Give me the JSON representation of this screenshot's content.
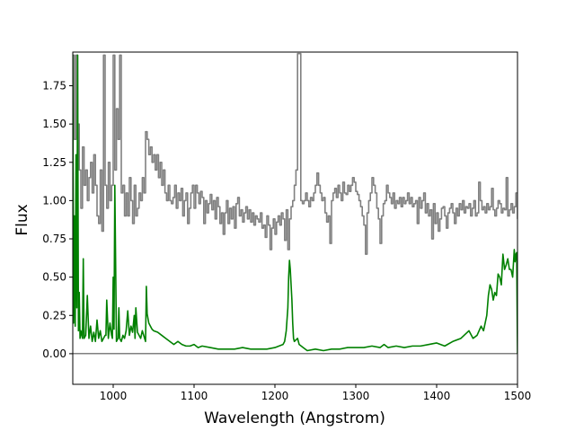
{
  "chart_data": {
    "type": "line",
    "xlabel": "Wavelength (Angstrom)",
    "ylabel": "Flux",
    "xlim": [
      950,
      1500
    ],
    "ylim": [
      -0.2,
      1.97
    ],
    "xticks": [
      1000,
      1100,
      1200,
      1300,
      1400,
      1500
    ],
    "yticks": [
      0.0,
      0.25,
      0.5,
      0.75,
      1.0,
      1.25,
      1.5,
      1.75
    ],
    "xtick_labels": [
      "1000",
      "1100",
      "1200",
      "1300",
      "1400",
      "1500"
    ],
    "ytick_labels": [
      "0.00",
      "0.25",
      "0.50",
      "0.75",
      "1.00",
      "1.25",
      "1.50",
      "1.75"
    ],
    "zero_line": 0.0,
    "grid": false,
    "series": [
      {
        "color": "#808080",
        "step": true,
        "x": [
          950,
          952,
          954,
          956,
          958,
          960,
          962,
          964,
          966,
          968,
          970,
          972,
          974,
          976,
          978,
          980,
          982,
          984,
          986,
          988,
          990,
          992,
          994,
          996,
          998,
          1000,
          1002,
          1004,
          1006,
          1008,
          1010,
          1012,
          1014,
          1016,
          1018,
          1020,
          1022,
          1024,
          1026,
          1028,
          1030,
          1032,
          1034,
          1036,
          1038,
          1040,
          1042,
          1044,
          1046,
          1048,
          1050,
          1052,
          1054,
          1056,
          1058,
          1060,
          1062,
          1064,
          1066,
          1068,
          1070,
          1072,
          1074,
          1076,
          1078,
          1080,
          1082,
          1084,
          1086,
          1088,
          1090,
          1092,
          1094,
          1096,
          1098,
          1100,
          1102,
          1104,
          1106,
          1108,
          1110,
          1112,
          1114,
          1116,
          1118,
          1120,
          1122,
          1124,
          1126,
          1128,
          1130,
          1132,
          1134,
          1136,
          1138,
          1140,
          1142,
          1144,
          1146,
          1148,
          1150,
          1152,
          1154,
          1156,
          1158,
          1160,
          1162,
          1164,
          1166,
          1168,
          1170,
          1172,
          1174,
          1176,
          1178,
          1180,
          1182,
          1184,
          1186,
          1188,
          1190,
          1192,
          1194,
          1196,
          1198,
          1200,
          1202,
          1204,
          1206,
          1208,
          1210,
          1212,
          1214,
          1216,
          1218,
          1220,
          1222,
          1224,
          1226,
          1228,
          1230,
          1232,
          1234,
          1236,
          1238,
          1240,
          1242,
          1244,
          1246,
          1248,
          1250,
          1252,
          1254,
          1256,
          1258,
          1260,
          1262,
          1264,
          1266,
          1268,
          1270,
          1272,
          1274,
          1276,
          1278,
          1280,
          1282,
          1284,
          1286,
          1288,
          1290,
          1292,
          1294,
          1296,
          1298,
          1300,
          1302,
          1304,
          1306,
          1308,
          1310,
          1312,
          1314,
          1316,
          1318,
          1320,
          1322,
          1324,
          1326,
          1328,
          1330,
          1332,
          1334,
          1336,
          1338,
          1340,
          1342,
          1344,
          1346,
          1348,
          1350,
          1352,
          1354,
          1356,
          1358,
          1360,
          1362,
          1364,
          1366,
          1368,
          1370,
          1372,
          1374,
          1376,
          1378,
          1380,
          1382,
          1384,
          1386,
          1388,
          1390,
          1392,
          1394,
          1396,
          1398,
          1400,
          1402,
          1404,
          1406,
          1408,
          1410,
          1412,
          1414,
          1416,
          1418,
          1420,
          1422,
          1424,
          1426,
          1428,
          1430,
          1432,
          1434,
          1436,
          1438,
          1440,
          1442,
          1444,
          1446,
          1448,
          1450,
          1452,
          1454,
          1456,
          1458,
          1460,
          1462,
          1464,
          1466,
          1468,
          1470,
          1472,
          1474,
          1476,
          1478,
          1480,
          1482,
          1484,
          1486,
          1488,
          1490,
          1492,
          1494,
          1496,
          1498,
          1500
        ],
        "y": [
          1.95,
          1.4,
          1.95,
          1.5,
          1.2,
          0.95,
          1.35,
          1.1,
          1.2,
          1.0,
          1.15,
          1.25,
          1.05,
          1.3,
          1.1,
          0.9,
          0.85,
          1.2,
          0.8,
          1.95,
          1.1,
          0.95,
          1.25,
          1.0,
          1.1,
          1.95,
          1.2,
          1.6,
          1.4,
          1.95,
          1.05,
          1.1,
          0.9,
          1.05,
          0.9,
          1.15,
          1.0,
          0.85,
          1.1,
          0.9,
          0.95,
          1.05,
          1.0,
          1.15,
          1.05,
          1.45,
          1.4,
          1.3,
          1.35,
          1.25,
          1.3,
          1.2,
          1.3,
          1.15,
          1.25,
          1.1,
          1.2,
          1.05,
          1.0,
          1.1,
          1.0,
          0.98,
          1.02,
          1.1,
          0.95,
          1.05,
          1.0,
          1.08,
          0.9,
          1.0,
          1.05,
          0.85,
          0.95,
          1.05,
          1.1,
          0.95,
          1.1,
          1.05,
          0.98,
          1.06,
          1.02,
          0.85,
          1.0,
          0.92,
          0.98,
          1.04,
          0.94,
          1.0,
          0.88,
          1.02,
          0.96,
          0.85,
          0.92,
          0.78,
          0.92,
          1.0,
          0.85,
          0.95,
          0.88,
          0.96,
          0.82,
          0.98,
          1.02,
          0.9,
          0.94,
          0.86,
          0.92,
          0.96,
          0.88,
          0.94,
          0.86,
          0.92,
          0.84,
          0.9,
          0.88,
          0.86,
          0.92,
          0.82,
          0.84,
          0.76,
          0.9,
          0.84,
          0.68,
          0.82,
          0.88,
          0.78,
          0.86,
          0.9,
          0.84,
          0.92,
          0.88,
          0.74,
          0.94,
          0.68,
          0.88,
          0.96,
          1.0,
          1.1,
          1.2,
          1.96,
          1.96,
          1.0,
          0.98,
          1.0,
          1.05,
          1.0,
          0.96,
          1.02,
          1.0,
          1.05,
          1.1,
          1.18,
          1.1,
          1.05,
          1.0,
          1.02,
          0.92,
          0.86,
          0.9,
          0.72,
          1.0,
          1.05,
          1.08,
          1.02,
          1.1,
          1.05,
          1.0,
          1.12,
          1.05,
          1.04,
          1.1,
          1.06,
          1.1,
          1.15,
          1.12,
          1.06,
          1.04,
          1.0,
          0.96,
          0.9,
          0.84,
          0.65,
          0.92,
          1.0,
          1.05,
          1.15,
          1.1,
          1.05,
          0.95,
          0.88,
          0.72,
          0.9,
          0.98,
          1.0,
          1.1,
          1.05,
          1.02,
          0.98,
          1.05,
          0.95,
          1.0,
          0.98,
          1.02,
          0.96,
          1.02,
          0.98,
          1.0,
          1.05,
          0.98,
          1.02,
          0.96,
          0.98,
          1.0,
          0.85,
          1.02,
          0.95,
          1.0,
          1.05,
          0.92,
          0.98,
          0.9,
          0.94,
          0.75,
          0.98,
          0.85,
          0.92,
          0.8,
          0.88,
          0.95,
          0.96,
          0.9,
          0.82,
          0.92,
          0.95,
          0.98,
          0.92,
          0.85,
          0.95,
          0.9,
          0.98,
          0.94,
          1.0,
          0.92,
          0.96,
          0.95,
          0.98,
          0.9,
          0.95,
          1.0,
          0.9,
          0.92,
          1.12,
          1.0,
          0.94,
          0.96,
          0.92,
          0.98,
          0.94,
          0.96,
          1.08,
          0.94,
          0.9,
          0.95,
          1.0,
          0.98,
          0.92,
          0.95,
          0.94,
          1.15,
          0.9,
          0.94,
          0.98,
          0.92,
          0.96,
          1.05,
          0.88
        ]
      },
      {
        "color": "#008000",
        "step": false,
        "x": [
          950,
          951,
          952,
          953,
          954,
          955,
          956,
          957,
          958,
          959,
          960,
          962,
          963,
          964,
          966,
          968,
          970,
          972,
          974,
          976,
          978,
          980,
          982,
          984,
          986,
          988,
          990,
          991,
          992,
          994,
          996,
          998,
          999,
          1000,
          1001,
          1002,
          1004,
          1006,
          1007,
          1008,
          1010,
          1012,
          1014,
          1016,
          1018,
          1020,
          1022,
          1024,
          1026,
          1027,
          1028,
          1030,
          1032,
          1034,
          1036,
          1040,
          1041,
          1042,
          1044,
          1046,
          1048,
          1050,
          1055,
          1060,
          1065,
          1070,
          1075,
          1080,
          1085,
          1090,
          1095,
          1100,
          1105,
          1110,
          1120,
          1130,
          1140,
          1150,
          1160,
          1170,
          1180,
          1190,
          1200,
          1205,
          1210,
          1212,
          1214,
          1216,
          1217,
          1218,
          1219,
          1220,
          1221,
          1222,
          1223,
          1224,
          1226,
          1228,
          1230,
          1235,
          1240,
          1250,
          1260,
          1270,
          1280,
          1290,
          1300,
          1310,
          1320,
          1330,
          1335,
          1340,
          1350,
          1360,
          1370,
          1380,
          1390,
          1400,
          1410,
          1420,
          1430,
          1440,
          1445,
          1450,
          1455,
          1458,
          1460,
          1462,
          1464,
          1466,
          1468,
          1470,
          1472,
          1474,
          1476,
          1478,
          1480,
          1482,
          1484,
          1486,
          1488,
          1490,
          1492,
          1494,
          1496,
          1497,
          1498,
          1499,
          1500
        ],
        "y": [
          1.95,
          0.2,
          0.9,
          0.18,
          1.3,
          0.3,
          1.95,
          0.15,
          0.4,
          0.1,
          0.15,
          0.1,
          0.62,
          0.1,
          0.12,
          0.38,
          0.1,
          0.18,
          0.08,
          0.14,
          0.08,
          0.22,
          0.1,
          0.15,
          0.08,
          0.1,
          0.12,
          0.12,
          0.35,
          0.1,
          0.2,
          0.12,
          0.1,
          0.5,
          0.16,
          1.1,
          0.08,
          0.1,
          0.3,
          0.1,
          0.08,
          0.12,
          0.1,
          0.15,
          0.28,
          0.12,
          0.18,
          0.14,
          0.25,
          0.1,
          0.3,
          0.14,
          0.12,
          0.1,
          0.15,
          0.08,
          0.44,
          0.26,
          0.2,
          0.18,
          0.16,
          0.15,
          0.14,
          0.12,
          0.1,
          0.08,
          0.06,
          0.08,
          0.06,
          0.05,
          0.05,
          0.06,
          0.04,
          0.05,
          0.04,
          0.03,
          0.03,
          0.03,
          0.04,
          0.03,
          0.03,
          0.03,
          0.04,
          0.05,
          0.06,
          0.08,
          0.15,
          0.3,
          0.5,
          0.61,
          0.55,
          0.45,
          0.35,
          0.2,
          0.1,
          0.08,
          0.09,
          0.1,
          0.06,
          0.04,
          0.02,
          0.03,
          0.02,
          0.03,
          0.03,
          0.04,
          0.04,
          0.04,
          0.05,
          0.04,
          0.06,
          0.04,
          0.05,
          0.04,
          0.05,
          0.05,
          0.06,
          0.07,
          0.05,
          0.08,
          0.1,
          0.15,
          0.1,
          0.12,
          0.18,
          0.15,
          0.2,
          0.25,
          0.38,
          0.45,
          0.42,
          0.35,
          0.4,
          0.38,
          0.52,
          0.5,
          0.45,
          0.65,
          0.55,
          0.58,
          0.62,
          0.55,
          0.55,
          0.5,
          0.68,
          0.6,
          0.65,
          0.66,
          0.0
        ]
      }
    ]
  }
}
